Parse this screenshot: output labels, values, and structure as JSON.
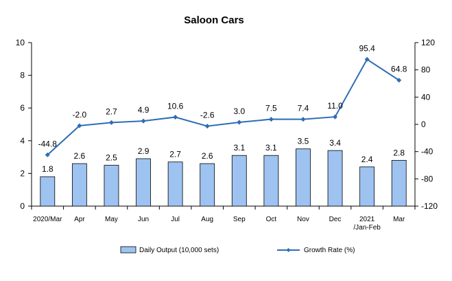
{
  "chart_data": {
    "type": "bar+line",
    "title": "Saloon Cars",
    "categories": [
      "2020/Mar",
      "Apr",
      "May",
      "Jun",
      "Jul",
      "Aug",
      "Sep",
      "Oct",
      "Nov",
      "Dec",
      "2021\n/Jan-Feb",
      "Mar"
    ],
    "series": [
      {
        "name": "Daily Output (10,000 sets)",
        "type": "bar",
        "axis": "left",
        "values": [
          1.8,
          2.6,
          2.5,
          2.9,
          2.7,
          2.6,
          3.1,
          3.1,
          3.5,
          3.4,
          2.4,
          2.8
        ],
        "labels": [
          "1.8",
          "2.6",
          "2.5",
          "2.9",
          "2.7",
          "2.6",
          "3.1",
          "3.1",
          "3.5",
          "3.4",
          "2.4",
          "2.8"
        ],
        "color": "#9ec3f0",
        "stroke": "#000000"
      },
      {
        "name": "Growth Rate (%)",
        "type": "line",
        "axis": "right",
        "values": [
          -44.8,
          -2.0,
          2.7,
          4.9,
          10.6,
          -2.6,
          3.0,
          7.5,
          7.4,
          11.0,
          95.4,
          64.8
        ],
        "labels": [
          "-44.8",
          "-2.0",
          "2.7",
          "4.9",
          "10.6",
          "-2.6",
          "3.0",
          "7.5",
          "7.4",
          "11.0",
          "95.4",
          "64.8"
        ],
        "color": "#2e6db4"
      }
    ],
    "y_left": {
      "range": [
        0,
        10
      ],
      "ticks": [
        "0",
        "2",
        "4",
        "6",
        "8",
        "10"
      ]
    },
    "y_right": {
      "range": [
        -120,
        120
      ],
      "ticks": [
        "-120",
        "-80",
        "-40",
        "0",
        "40",
        "80",
        "120"
      ]
    },
    "grid": false,
    "legend": "bottom"
  }
}
